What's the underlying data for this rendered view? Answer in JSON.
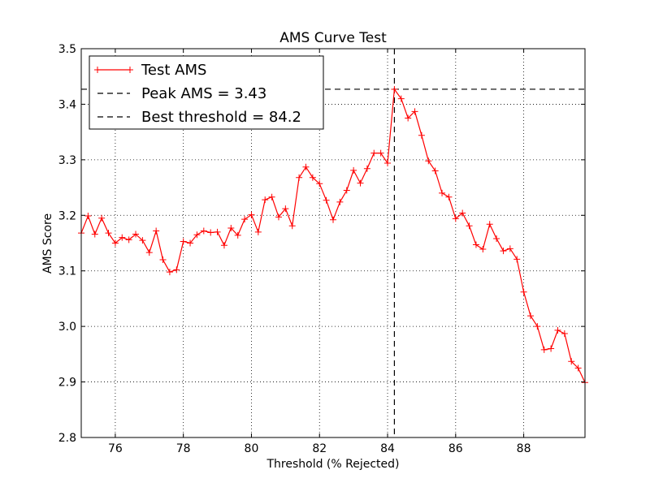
{
  "chart_data": {
    "type": "line",
    "title": "AMS Curve Test",
    "xlabel": "Threshold (% Rejected)",
    "ylabel": "AMS Score",
    "xlim": [
      75,
      89.8
    ],
    "ylim": [
      2.8,
      3.5
    ],
    "grid": true,
    "legend_position": "top-left",
    "xticks": [
      76,
      78,
      80,
      82,
      84,
      86,
      88
    ],
    "xtick_labels": [
      "76",
      "78",
      "80",
      "82",
      "84",
      "86",
      "88"
    ],
    "yticks": [
      2.8,
      2.9,
      3.0,
      3.1,
      3.2,
      3.3,
      3.4,
      3.5
    ],
    "ytick_labels": [
      "2.8",
      "2.9",
      "3.0",
      "3.1",
      "3.2",
      "3.3",
      "3.4",
      "3.5"
    ],
    "series": [
      {
        "name": "Test AMS",
        "color": "#ff0000",
        "marker": "+",
        "x": [
          75.0,
          75.2,
          75.4,
          75.6,
          75.8,
          76.0,
          76.2,
          76.4,
          76.6,
          76.8,
          77.0,
          77.2,
          77.4,
          77.6,
          77.8,
          78.0,
          78.2,
          78.4,
          78.6,
          78.8,
          79.0,
          79.2,
          79.4,
          79.6,
          79.8,
          80.0,
          80.2,
          80.4,
          80.6,
          80.8,
          81.0,
          81.2,
          81.4,
          81.6,
          81.8,
          82.0,
          82.2,
          82.4,
          82.6,
          82.8,
          83.0,
          83.2,
          83.4,
          83.6,
          83.8,
          84.0,
          84.2,
          84.4,
          84.6,
          84.8,
          85.0,
          85.2,
          85.4,
          85.6,
          85.8,
          86.0,
          86.2,
          86.4,
          86.6,
          86.8,
          87.0,
          87.2,
          87.4,
          87.6,
          87.8,
          88.0,
          88.2,
          88.4,
          88.6,
          88.8,
          89.0,
          89.2,
          89.4,
          89.6,
          89.8
        ],
        "y": [
          3.168,
          3.199,
          3.166,
          3.195,
          3.168,
          3.15,
          3.16,
          3.156,
          3.166,
          3.155,
          3.133,
          3.172,
          3.12,
          3.098,
          3.102,
          3.153,
          3.15,
          3.165,
          3.172,
          3.169,
          3.17,
          3.146,
          3.177,
          3.164,
          3.193,
          3.201,
          3.17,
          3.228,
          3.233,
          3.197,
          3.212,
          3.181,
          3.268,
          3.287,
          3.268,
          3.257,
          3.227,
          3.192,
          3.224,
          3.245,
          3.281,
          3.258,
          3.284,
          3.312,
          3.312,
          3.294,
          3.427,
          3.41,
          3.375,
          3.387,
          3.344,
          3.298,
          3.28,
          3.24,
          3.233,
          3.194,
          3.204,
          3.181,
          3.147,
          3.139,
          3.184,
          3.158,
          3.136,
          3.14,
          3.121,
          3.062,
          3.019,
          3.0,
          2.958,
          2.96,
          2.993,
          2.987,
          2.937,
          2.925,
          2.899
        ]
      }
    ],
    "reference_lines": [
      {
        "name": "Peak AMS = 3.43",
        "orientation": "horizontal",
        "value": 3.427,
        "color": "#000000",
        "style": "dashed"
      },
      {
        "name": "Best threshold = 84.2",
        "orientation": "vertical",
        "value": 84.2,
        "color": "#000000",
        "style": "dashed"
      }
    ]
  }
}
